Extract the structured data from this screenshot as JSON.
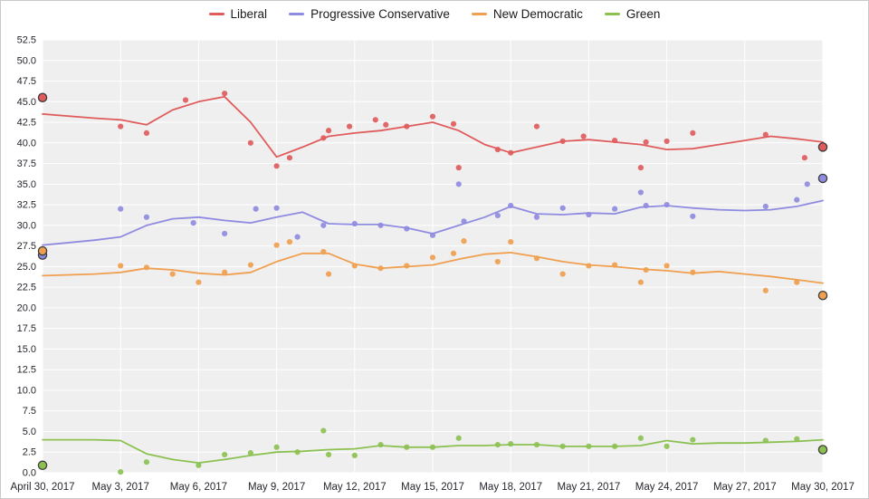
{
  "legend": {
    "items": [
      {
        "label": "Liberal",
        "color": "#e05c5c"
      },
      {
        "label": "Progressive Conservative",
        "color": "#8f8be0"
      },
      {
        "label": "New Democratic",
        "color": "#ef9f4f"
      },
      {
        "label": "Green",
        "color": "#8cc152"
      }
    ]
  },
  "chart_data": {
    "type": "line+scatter",
    "title": "",
    "xlabel": "",
    "ylabel": "",
    "y_min": 0,
    "y_max": 52.5,
    "y_step": 2.5,
    "x_range_days": [
      0,
      30
    ],
    "x_tick_days": [
      0,
      3,
      6,
      9,
      12,
      15,
      18,
      21,
      24,
      27,
      30
    ],
    "x_tick_labels": [
      "April 30, 2017",
      "May 3, 2017",
      "May 6, 2017",
      "May 9, 2017",
      "May 12, 2017",
      "May 15, 2017",
      "May 18, 2017",
      "May 21, 2017",
      "May 24, 2017",
      "May 27, 2017",
      "May 30, 2017"
    ],
    "plot_bg": "#efefef",
    "grid_color": "#ffffff",
    "axis_text_color": "#26262e",
    "grid_on": true,
    "legend_position": "top-center",
    "series": [
      {
        "name": "Liberal",
        "color": "#e05c5c",
        "trend": [
          [
            0,
            43.5
          ],
          [
            2,
            43.0
          ],
          [
            3,
            42.8
          ],
          [
            4,
            42.2
          ],
          [
            5,
            44.0
          ],
          [
            6,
            45.0
          ],
          [
            7,
            45.6
          ],
          [
            8,
            42.5
          ],
          [
            9,
            38.3
          ],
          [
            10,
            39.5
          ],
          [
            11,
            40.8
          ],
          [
            12,
            41.2
          ],
          [
            13,
            41.5
          ],
          [
            14,
            42.0
          ],
          [
            15,
            42.5
          ],
          [
            16,
            41.5
          ],
          [
            17,
            39.8
          ],
          [
            18,
            38.8
          ],
          [
            19,
            39.5
          ],
          [
            20,
            40.2
          ],
          [
            21,
            40.4
          ],
          [
            22,
            40.1
          ],
          [
            23,
            39.8
          ],
          [
            24,
            39.2
          ],
          [
            25,
            39.3
          ],
          [
            26,
            39.8
          ],
          [
            27,
            40.3
          ],
          [
            28,
            40.8
          ],
          [
            29,
            40.5
          ],
          [
            30,
            40.1
          ]
        ],
        "polls": [
          [
            3,
            42.0
          ],
          [
            4,
            41.2
          ],
          [
            5.5,
            45.2
          ],
          [
            7,
            46.0
          ],
          [
            8,
            40.0
          ],
          [
            9,
            37.2
          ],
          [
            9.5,
            38.2
          ],
          [
            10.8,
            40.6
          ],
          [
            11,
            41.5
          ],
          [
            11.8,
            42.0
          ],
          [
            12.8,
            42.8
          ],
          [
            13.2,
            42.2
          ],
          [
            14,
            42.0
          ],
          [
            15,
            43.2
          ],
          [
            15.8,
            42.3
          ],
          [
            16,
            37.0
          ],
          [
            17.5,
            39.2
          ],
          [
            18,
            38.8
          ],
          [
            19,
            42.0
          ],
          [
            20,
            40.2
          ],
          [
            20.8,
            40.8
          ],
          [
            22,
            40.3
          ],
          [
            23,
            37.0
          ],
          [
            23.2,
            40.1
          ],
          [
            24,
            40.2
          ],
          [
            25,
            41.2
          ],
          [
            27.8,
            41.0
          ],
          [
            29.3,
            38.2
          ]
        ],
        "start_marker": {
          "day": 0,
          "value": 45.5
        },
        "end_marker": {
          "day": 30,
          "value": 39.5
        }
      },
      {
        "name": "Progressive Conservative",
        "color": "#8f8be0",
        "trend": [
          [
            0,
            27.6
          ],
          [
            2,
            28.2
          ],
          [
            3,
            28.6
          ],
          [
            4,
            30.0
          ],
          [
            5,
            30.8
          ],
          [
            6,
            31.0
          ],
          [
            7,
            30.6
          ],
          [
            8,
            30.3
          ],
          [
            9,
            31.0
          ],
          [
            10,
            31.6
          ],
          [
            11,
            30.2
          ],
          [
            12,
            30.1
          ],
          [
            13,
            30.1
          ],
          [
            14,
            29.7
          ],
          [
            15,
            29.0
          ],
          [
            16,
            30.0
          ],
          [
            17,
            31.0
          ],
          [
            18,
            32.3
          ],
          [
            19,
            31.4
          ],
          [
            20,
            31.3
          ],
          [
            21,
            31.5
          ],
          [
            22,
            31.4
          ],
          [
            23,
            32.2
          ],
          [
            24,
            32.4
          ],
          [
            25,
            32.1
          ],
          [
            26,
            31.9
          ],
          [
            27,
            31.8
          ],
          [
            28,
            31.9
          ],
          [
            29,
            32.3
          ],
          [
            30,
            33.0
          ]
        ],
        "polls": [
          [
            3,
            32.0
          ],
          [
            4,
            31.0
          ],
          [
            5.8,
            30.3
          ],
          [
            7,
            29.0
          ],
          [
            8.2,
            32.0
          ],
          [
            9,
            32.1
          ],
          [
            9.8,
            28.6
          ],
          [
            10.8,
            30.0
          ],
          [
            12,
            30.2
          ],
          [
            13,
            30.0
          ],
          [
            14,
            29.6
          ],
          [
            15,
            28.8
          ],
          [
            16,
            35.0
          ],
          [
            16.2,
            30.5
          ],
          [
            17.5,
            31.2
          ],
          [
            18,
            32.4
          ],
          [
            19,
            31.0
          ],
          [
            20,
            32.1
          ],
          [
            21,
            31.3
          ],
          [
            22,
            32.0
          ],
          [
            23,
            34.0
          ],
          [
            23.2,
            32.4
          ],
          [
            24,
            32.5
          ],
          [
            25,
            31.1
          ],
          [
            27.8,
            32.3
          ],
          [
            29,
            33.1
          ],
          [
            29.4,
            35.0
          ]
        ],
        "start_marker": {
          "day": 0,
          "value": 26.4
        },
        "end_marker": {
          "day": 30,
          "value": 35.7
        }
      },
      {
        "name": "New Democratic",
        "color": "#ef9f4f",
        "trend": [
          [
            0,
            23.9
          ],
          [
            2,
            24.1
          ],
          [
            3,
            24.3
          ],
          [
            4,
            24.8
          ],
          [
            5,
            24.6
          ],
          [
            6,
            24.2
          ],
          [
            7,
            24.0
          ],
          [
            8,
            24.3
          ],
          [
            9,
            25.6
          ],
          [
            10,
            26.6
          ],
          [
            11,
            26.6
          ],
          [
            12,
            25.3
          ],
          [
            13,
            24.8
          ],
          [
            14,
            25.0
          ],
          [
            15,
            25.2
          ],
          [
            16,
            25.9
          ],
          [
            17,
            26.5
          ],
          [
            18,
            26.7
          ],
          [
            19,
            26.2
          ],
          [
            20,
            25.6
          ],
          [
            21,
            25.2
          ],
          [
            22,
            25.0
          ],
          [
            23,
            24.7
          ],
          [
            24,
            24.5
          ],
          [
            25,
            24.2
          ],
          [
            26,
            24.4
          ],
          [
            27,
            24.1
          ],
          [
            28,
            23.8
          ],
          [
            29,
            23.4
          ],
          [
            30,
            23.0
          ]
        ],
        "polls": [
          [
            3,
            25.1
          ],
          [
            4,
            24.9
          ],
          [
            5,
            24.1
          ],
          [
            6,
            23.1
          ],
          [
            7,
            24.3
          ],
          [
            8,
            25.2
          ],
          [
            9,
            27.6
          ],
          [
            9.5,
            28.0
          ],
          [
            10.8,
            26.8
          ],
          [
            11,
            24.1
          ],
          [
            12,
            25.1
          ],
          [
            13,
            24.8
          ],
          [
            14,
            25.1
          ],
          [
            15,
            26.1
          ],
          [
            15.8,
            26.6
          ],
          [
            16.2,
            28.1
          ],
          [
            17.5,
            25.6
          ],
          [
            18,
            28.0
          ],
          [
            19,
            26.0
          ],
          [
            20,
            24.1
          ],
          [
            21,
            25.1
          ],
          [
            22,
            25.2
          ],
          [
            23,
            23.1
          ],
          [
            23.2,
            24.6
          ],
          [
            24,
            25.1
          ],
          [
            25,
            24.3
          ],
          [
            27.8,
            22.1
          ],
          [
            29,
            23.1
          ]
        ],
        "start_marker": {
          "day": 0,
          "value": 26.9
        },
        "end_marker": {
          "day": 30,
          "value": 21.5
        }
      },
      {
        "name": "Green",
        "color": "#8cc152",
        "trend": [
          [
            0,
            4.0
          ],
          [
            2,
            4.0
          ],
          [
            3,
            3.9
          ],
          [
            4,
            2.3
          ],
          [
            5,
            1.6
          ],
          [
            6,
            1.2
          ],
          [
            7,
            1.6
          ],
          [
            8,
            2.1
          ],
          [
            9,
            2.5
          ],
          [
            10,
            2.6
          ],
          [
            11,
            2.8
          ],
          [
            12,
            2.9
          ],
          [
            13,
            3.3
          ],
          [
            14,
            3.1
          ],
          [
            15,
            3.1
          ],
          [
            16,
            3.3
          ],
          [
            17,
            3.3
          ],
          [
            18,
            3.4
          ],
          [
            19,
            3.4
          ],
          [
            20,
            3.2
          ],
          [
            21,
            3.2
          ],
          [
            22,
            3.2
          ],
          [
            23,
            3.3
          ],
          [
            24,
            3.9
          ],
          [
            25,
            3.5
          ],
          [
            26,
            3.6
          ],
          [
            27,
            3.6
          ],
          [
            28,
            3.7
          ],
          [
            29,
            3.8
          ],
          [
            30,
            4.0
          ]
        ],
        "polls": [
          [
            3,
            0.1
          ],
          [
            4,
            1.3
          ],
          [
            6,
            0.9
          ],
          [
            7,
            2.2
          ],
          [
            8,
            2.4
          ],
          [
            9,
            3.1
          ],
          [
            9.8,
            2.5
          ],
          [
            10.8,
            5.1
          ],
          [
            11,
            2.2
          ],
          [
            12,
            2.1
          ],
          [
            13,
            3.4
          ],
          [
            14,
            3.1
          ],
          [
            15,
            3.1
          ],
          [
            16,
            4.2
          ],
          [
            17.5,
            3.4
          ],
          [
            18,
            3.5
          ],
          [
            19,
            3.4
          ],
          [
            20,
            3.2
          ],
          [
            21,
            3.2
          ],
          [
            22,
            3.2
          ],
          [
            23,
            4.2
          ],
          [
            24,
            3.2
          ],
          [
            25,
            4.0
          ],
          [
            27.8,
            3.9
          ],
          [
            29,
            4.1
          ]
        ],
        "start_marker": {
          "day": 0,
          "value": 0.9
        },
        "end_marker": {
          "day": 30,
          "value": 2.8
        }
      }
    ]
  }
}
